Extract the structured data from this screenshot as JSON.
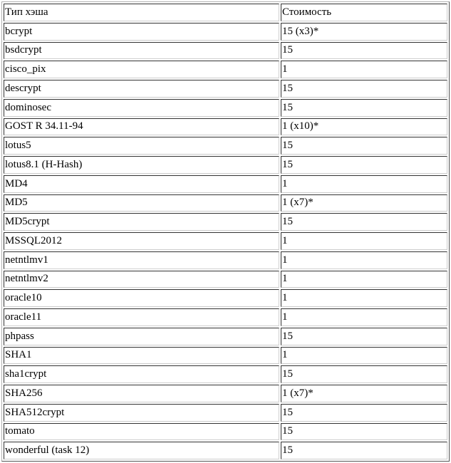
{
  "table": {
    "headers": [
      "Тип хэша",
      "Стоимость"
    ],
    "rows": [
      [
        "bcrypt",
        "15 (x3)*"
      ],
      [
        "bsdcrypt",
        "15"
      ],
      [
        "cisco_pix",
        "1"
      ],
      [
        "descrypt",
        "15"
      ],
      [
        "dominosec",
        "15"
      ],
      [
        "GOST R 34.11-94",
        "1 (x10)*"
      ],
      [
        "lotus5",
        "15"
      ],
      [
        "lotus8.1 (H-Hash)",
        "15"
      ],
      [
        "MD4",
        "1"
      ],
      [
        "MD5",
        "1 (x7)*"
      ],
      [
        "MD5crypt",
        "15"
      ],
      [
        "MSSQL2012",
        "1"
      ],
      [
        "netntlmv1",
        "1"
      ],
      [
        "netntlmv2",
        "1"
      ],
      [
        "oracle10",
        "1"
      ],
      [
        "oracle11",
        "1"
      ],
      [
        "phpass",
        "15"
      ],
      [
        "SHA1",
        "1"
      ],
      [
        "sha1crypt",
        "15"
      ],
      [
        "SHA256",
        "1 (x7)*"
      ],
      [
        "SHA512crypt",
        "15"
      ],
      [
        "tomato",
        "15"
      ],
      [
        "wonderful (task 12)",
        "15"
      ]
    ]
  }
}
